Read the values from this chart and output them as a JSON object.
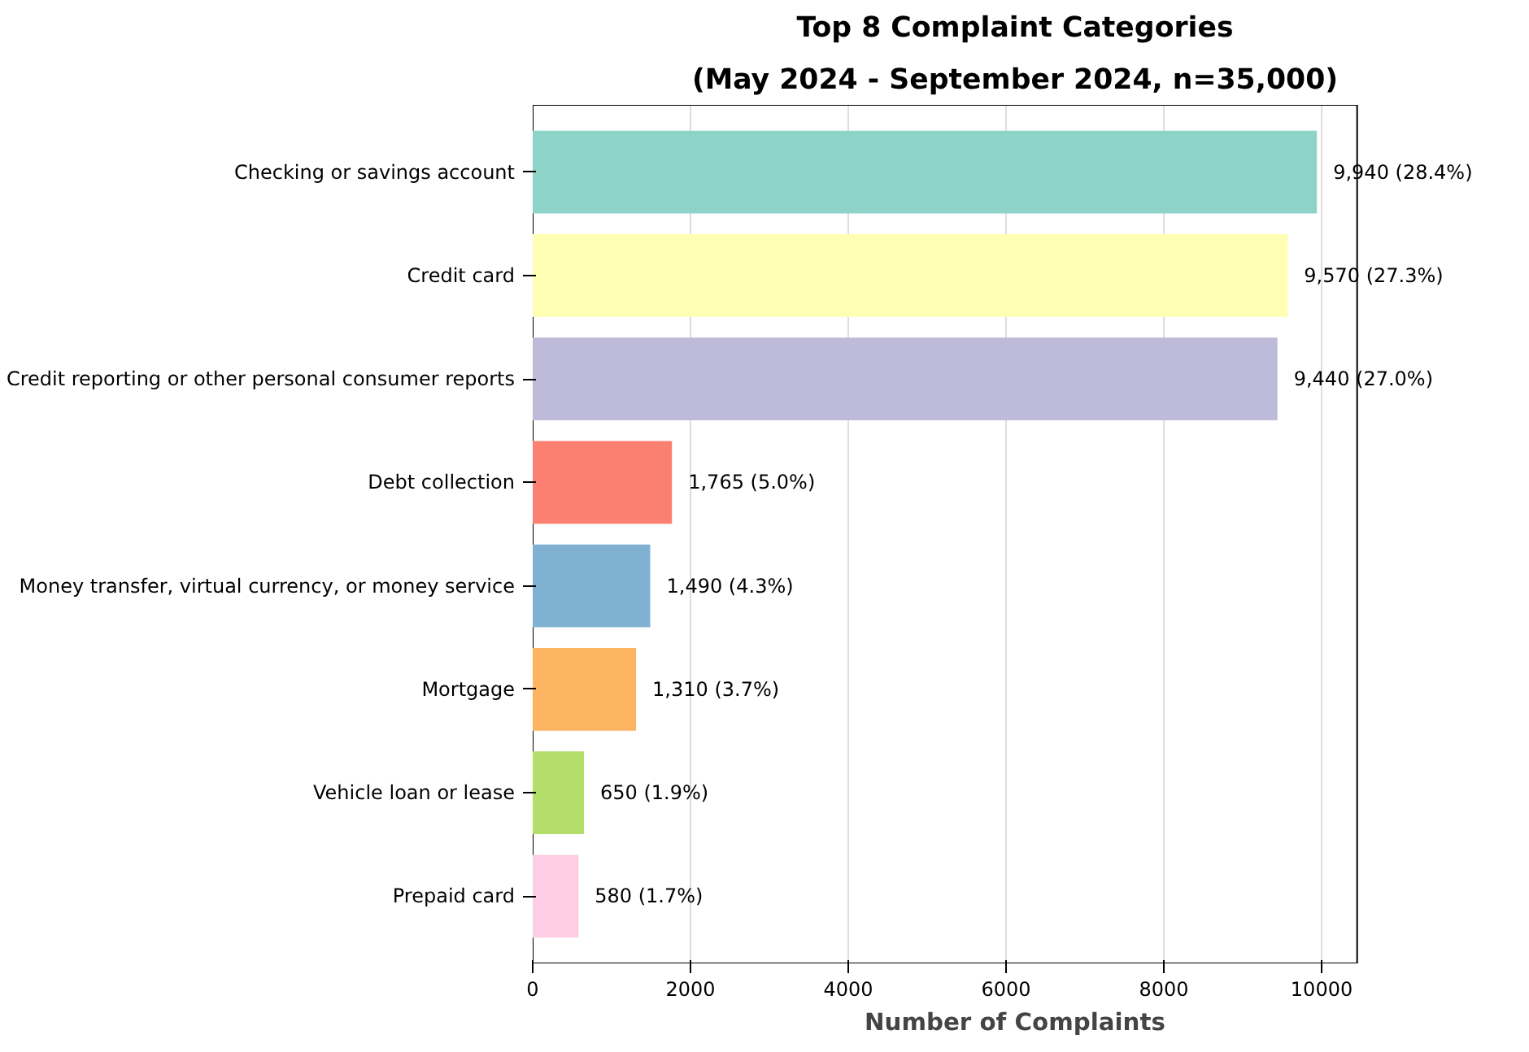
{
  "chart_data": {
    "type": "bar",
    "orientation": "horizontal",
    "title": "Top 8 Complaint Categories",
    "subtitle": "(May 2024 - September 2024, n=35,000)",
    "xlabel": "Number of Complaints",
    "categories": [
      "Checking or savings account",
      "Credit card",
      "Credit reporting or other personal consumer reports",
      "Debt collection",
      "Money transfer, virtual currency, or money service",
      "Mortgage",
      "Vehicle loan or lease",
      "Prepaid card"
    ],
    "values": [
      9940,
      9570,
      9440,
      1765,
      1490,
      1310,
      650,
      580
    ],
    "colors": [
      "#8dd3c7",
      "#ffffb3",
      "#bebada",
      "#fb8072",
      "#80b1d3",
      "#fdb462",
      "#b3de69",
      "#fccde5"
    ],
    "value_labels": [
      "9,940 (28.4%)",
      "9,570 (27.3%)",
      "9,440 (27.0%)",
      "1,765 (5.0%)",
      "1,490 (4.3%)",
      "1,310 (3.7%)",
      "650 (1.9%)",
      "580 (1.7%)"
    ],
    "xlim": [
      0,
      10450
    ],
    "xticks": [
      0,
      2000,
      4000,
      6000,
      8000,
      10000
    ],
    "grid": "x"
  }
}
